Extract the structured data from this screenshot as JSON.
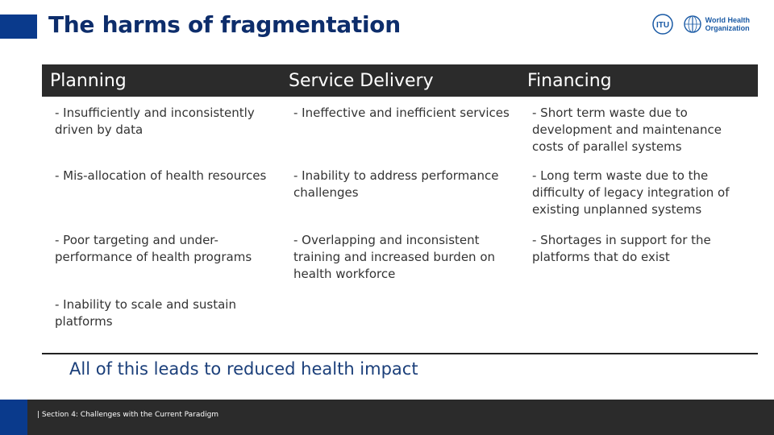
{
  "slide": {
    "title": "The harms of fragmentation",
    "logos": {
      "itu": "ITU",
      "who_line1": "World Health",
      "who_line2": "Organization"
    },
    "columns": [
      "Planning",
      "Service Delivery",
      "Financing"
    ],
    "rows": [
      [
        "- Insufficiently and inconsistently driven by data",
        "- Ineffective and inefficient services",
        "- Short term waste due to development and maintenance costs of parallel systems"
      ],
      [
        "- Mis-allocation of health resources",
        "- Inability to address performance challenges",
        "- Long term waste due to the difficulty of legacy integration of existing unplanned systems"
      ],
      [
        "- Poor targeting and under-performance of health programs",
        "- Overlapping and inconsistent training and increased burden on health workforce",
        "- Shortages in support for the platforms that do exist"
      ],
      [
        "- Inability to scale and sustain platforms",
        "",
        ""
      ]
    ],
    "conclusion": "All of this leads to reduced health impact",
    "footer": "| Section 4: Challenges with the Current Paradigm"
  },
  "colors": {
    "accent_blue": "#0a3a8c",
    "header_bg": "#2b2b2b",
    "title_color": "#0d2d6b"
  }
}
